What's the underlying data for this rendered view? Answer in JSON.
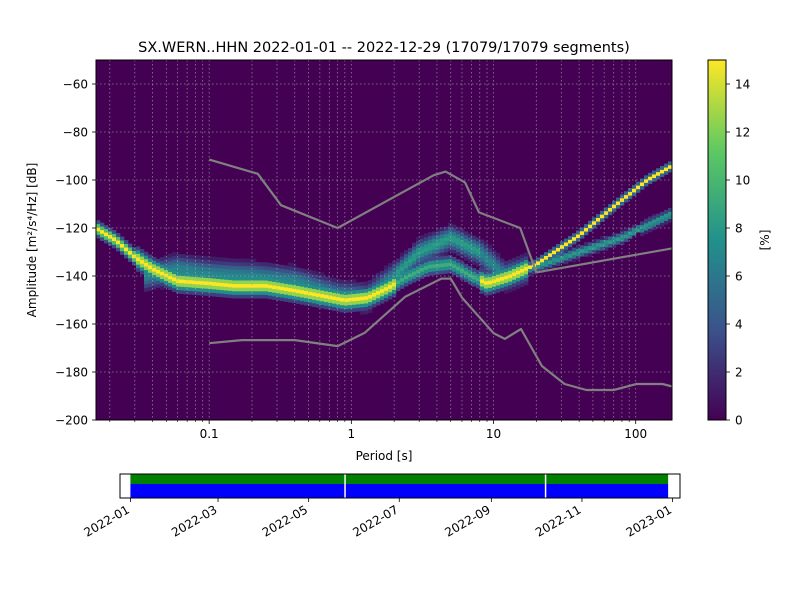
{
  "chart_data": [
    {
      "type": "heatmap",
      "title": "SX.WERN..HHN   2022-01-01 -- 2022-12-29  (17079/17079 segments)",
      "xlabel": "Period [s]",
      "ylabel": "Amplitude [m²/s⁴/Hz] [dB]",
      "x_scale": "log",
      "xlim": [
        0.016,
        180
      ],
      "ylim": [
        -200,
        -50
      ],
      "x_ticks": [
        {
          "value": 0.1,
          "label": "0.1"
        },
        {
          "value": 1,
          "label": "1"
        },
        {
          "value": 10,
          "label": "10"
        },
        {
          "value": 100,
          "label": "100"
        }
      ],
      "y_ticks": [
        -60,
        -80,
        -100,
        -120,
        -140,
        -160,
        -180,
        -200
      ],
      "grid": true,
      "colormap": "viridis",
      "colorbar": {
        "label": "[%]",
        "min": 0,
        "max": 15,
        "ticks": [
          0,
          2,
          4,
          6,
          8,
          10,
          12,
          14
        ]
      },
      "ppsd_modes": [
        {
          "name": "primary",
          "points": [
            [
              0.016,
              -120
            ],
            [
              0.022,
              -125
            ],
            [
              0.03,
              -132
            ],
            [
              0.04,
              -137
            ],
            [
              0.06,
              -142
            ],
            [
              0.1,
              -143
            ],
            [
              0.15,
              -144
            ],
            [
              0.25,
              -144
            ],
            [
              0.4,
              -146
            ],
            [
              0.6,
              -148
            ],
            [
              0.9,
              -150
            ],
            [
              1.3,
              -149
            ],
            [
              1.8,
              -145
            ],
            [
              2.5,
              -140
            ],
            [
              3.5,
              -136
            ],
            [
              5,
              -135
            ],
            [
              7,
              -140
            ],
            [
              9,
              -143
            ],
            [
              13,
              -140
            ],
            [
              20,
              -135
            ],
            [
              40,
              -123
            ],
            [
              70,
              -111
            ],
            [
              120,
              -100
            ],
            [
              180,
              -94
            ]
          ]
        },
        {
          "name": "secondary",
          "points": [
            [
              0.035,
              -140
            ],
            [
              0.06,
              -137
            ],
            [
              0.1,
              -139
            ],
            [
              0.2,
              -140
            ],
            [
              0.4,
              -142
            ],
            [
              0.8,
              -148
            ],
            [
              1.3,
              -149
            ],
            [
              2,
              -140
            ],
            [
              3,
              -130
            ],
            [
              5,
              -124
            ],
            [
              8,
              -130
            ],
            [
              12,
              -140
            ],
            [
              20,
              -136
            ],
            [
              40,
              -130
            ],
            [
              80,
              -124
            ],
            [
              180,
              -114
            ]
          ]
        }
      ],
      "noise_model_high": [
        [
          0.1,
          -91.5
        ],
        [
          0.22,
          -97.4
        ],
        [
          0.32,
          -110.5
        ],
        [
          0.8,
          -120
        ],
        [
          3.8,
          -98
        ],
        [
          4.6,
          -96.5
        ],
        [
          6.3,
          -101
        ],
        [
          7.9,
          -113.5
        ],
        [
          15.4,
          -120
        ],
        [
          20,
          -138.5
        ],
        [
          180,
          -128.5
        ]
      ],
      "noise_model_low": [
        [
          0.1,
          -168
        ],
        [
          0.17,
          -166.7
        ],
        [
          0.4,
          -166.7
        ],
        [
          0.8,
          -169.2
        ],
        [
          1.24,
          -163.7
        ],
        [
          2.4,
          -148.6
        ],
        [
          4.3,
          -141.1
        ],
        [
          5,
          -141.1
        ],
        [
          6,
          -149
        ],
        [
          10,
          -163.8
        ],
        [
          12,
          -166.2
        ],
        [
          15.6,
          -162.1
        ],
        [
          21.9,
          -177.5
        ],
        [
          31.6,
          -185
        ],
        [
          45,
          -187.5
        ],
        [
          70,
          -187.5
        ],
        [
          101,
          -185
        ],
        [
          154,
          -185
        ],
        [
          180,
          -186
        ]
      ]
    },
    {
      "type": "timeline",
      "x_ticks": [
        "2022-01",
        "2022-03",
        "2022-05",
        "2022-07",
        "2022-09",
        "2022-11",
        "2023-01"
      ],
      "xlim": [
        "2021-12-25",
        "2023-01-06"
      ],
      "coverage": [
        {
          "start": "2022-01-01",
          "end": "2022-05-25",
          "color": "#0000ff"
        },
        {
          "start": "2022-05-26",
          "end": "2022-10-07",
          "color": "#0000ff"
        },
        {
          "start": "2022-10-08",
          "end": "2022-12-29",
          "color": "#0000ff"
        }
      ],
      "processed": [
        {
          "start": "2022-01-01",
          "end": "2022-05-25",
          "color": "#008000"
        },
        {
          "start": "2022-05-26",
          "end": "2022-10-07",
          "color": "#008000"
        },
        {
          "start": "2022-10-08",
          "end": "2022-12-29",
          "color": "#008000"
        }
      ]
    }
  ]
}
